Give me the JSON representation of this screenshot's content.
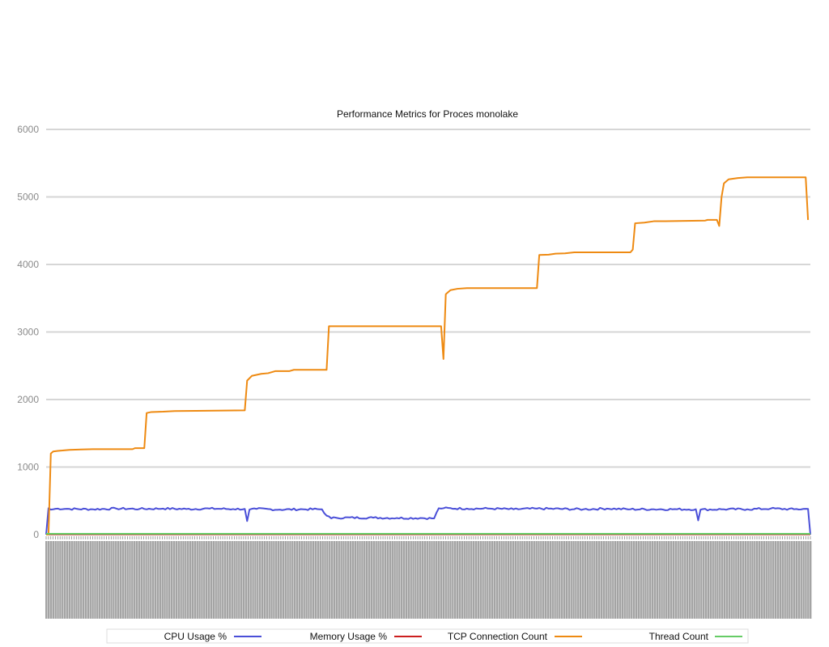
{
  "chart_data": {
    "type": "line",
    "title": "Performance Metrics for Proces monolake",
    "xlabel": "",
    "ylabel": "",
    "ylim": [
      0,
      6000
    ],
    "y_ticks": [
      0,
      1000,
      2000,
      3000,
      4000,
      5000,
      6000
    ],
    "grid": true,
    "legend_placement": "bottom",
    "sample_count": 330,
    "series": [
      {
        "name": "CPU Usage %",
        "color": "#4a4fd8",
        "points": [
          [
            0,
            0
          ],
          [
            1,
            390
          ],
          [
            2,
            370
          ],
          [
            5,
            385
          ],
          [
            10,
            380
          ],
          [
            20,
            375
          ],
          [
            30,
            385
          ],
          [
            40,
            380
          ],
          [
            50,
            385
          ],
          [
            60,
            378
          ],
          [
            70,
            385
          ],
          [
            80,
            378
          ],
          [
            85,
            380
          ],
          [
            86,
            200
          ],
          [
            87,
            370
          ],
          [
            90,
            380
          ],
          [
            100,
            370
          ],
          [
            110,
            375
          ],
          [
            118,
            375
          ],
          [
            120,
            280
          ],
          [
            122,
            240
          ],
          [
            124,
            250
          ],
          [
            140,
            250
          ],
          [
            150,
            245
          ],
          [
            160,
            245
          ],
          [
            166,
            240
          ],
          [
            168,
            390
          ],
          [
            170,
            390
          ],
          [
            180,
            385
          ],
          [
            190,
            385
          ],
          [
            200,
            375
          ],
          [
            210,
            385
          ],
          [
            230,
            375
          ],
          [
            240,
            385
          ],
          [
            250,
            375
          ],
          [
            260,
            375
          ],
          [
            270,
            375
          ],
          [
            278,
            375
          ],
          [
            279,
            210
          ],
          [
            280,
            370
          ],
          [
            290,
            375
          ],
          [
            300,
            375
          ],
          [
            310,
            385
          ],
          [
            320,
            375
          ],
          [
            326,
            380
          ],
          [
            327,
            0
          ]
        ],
        "noise": 15
      },
      {
        "name": "Memory Usage %",
        "color": "#cc1f1f",
        "points": [
          [
            0,
            5
          ],
          [
            327,
            5
          ]
        ],
        "noise": 0
      },
      {
        "name": "TCP Connection Count",
        "color": "#ee8a12",
        "points": [
          [
            0,
            0
          ],
          [
            1,
            0
          ],
          [
            2,
            1200
          ],
          [
            3,
            1230
          ],
          [
            5,
            1240
          ],
          [
            7,
            1245
          ],
          [
            10,
            1255
          ],
          [
            15,
            1260
          ],
          [
            20,
            1265
          ],
          [
            30,
            1265
          ],
          [
            37,
            1265
          ],
          [
            38,
            1280
          ],
          [
            42,
            1280
          ],
          [
            43,
            1800
          ],
          [
            45,
            1815
          ],
          [
            50,
            1820
          ],
          [
            55,
            1830
          ],
          [
            85,
            1840
          ],
          [
            86,
            2280
          ],
          [
            88,
            2350
          ],
          [
            92,
            2380
          ],
          [
            95,
            2390
          ],
          [
            98,
            2420
          ],
          [
            104,
            2420
          ],
          [
            106,
            2440
          ],
          [
            120,
            2440
          ],
          [
            121,
            3085
          ],
          [
            169,
            3085
          ],
          [
            170,
            2600
          ],
          [
            171,
            3560
          ],
          [
            173,
            3620
          ],
          [
            176,
            3640
          ],
          [
            180,
            3650
          ],
          [
            210,
            3650
          ],
          [
            211,
            4140
          ],
          [
            215,
            4145
          ],
          [
            218,
            4160
          ],
          [
            222,
            4165
          ],
          [
            226,
            4180
          ],
          [
            250,
            4180
          ],
          [
            251,
            4220
          ],
          [
            252,
            4610
          ],
          [
            256,
            4620
          ],
          [
            260,
            4640
          ],
          [
            265,
            4640
          ],
          [
            282,
            4650
          ],
          [
            283,
            4660
          ],
          [
            287,
            4660
          ],
          [
            288,
            4570
          ],
          [
            289,
            5000
          ],
          [
            290,
            5200
          ],
          [
            292,
            5260
          ],
          [
            296,
            5280
          ],
          [
            300,
            5290
          ],
          [
            325,
            5290
          ],
          [
            326,
            4660
          ]
        ],
        "noise": 0
      },
      {
        "name": "Thread Count",
        "color": "#66cc66",
        "points": [
          [
            0,
            12
          ],
          [
            327,
            12
          ]
        ],
        "noise": 0
      }
    ]
  }
}
